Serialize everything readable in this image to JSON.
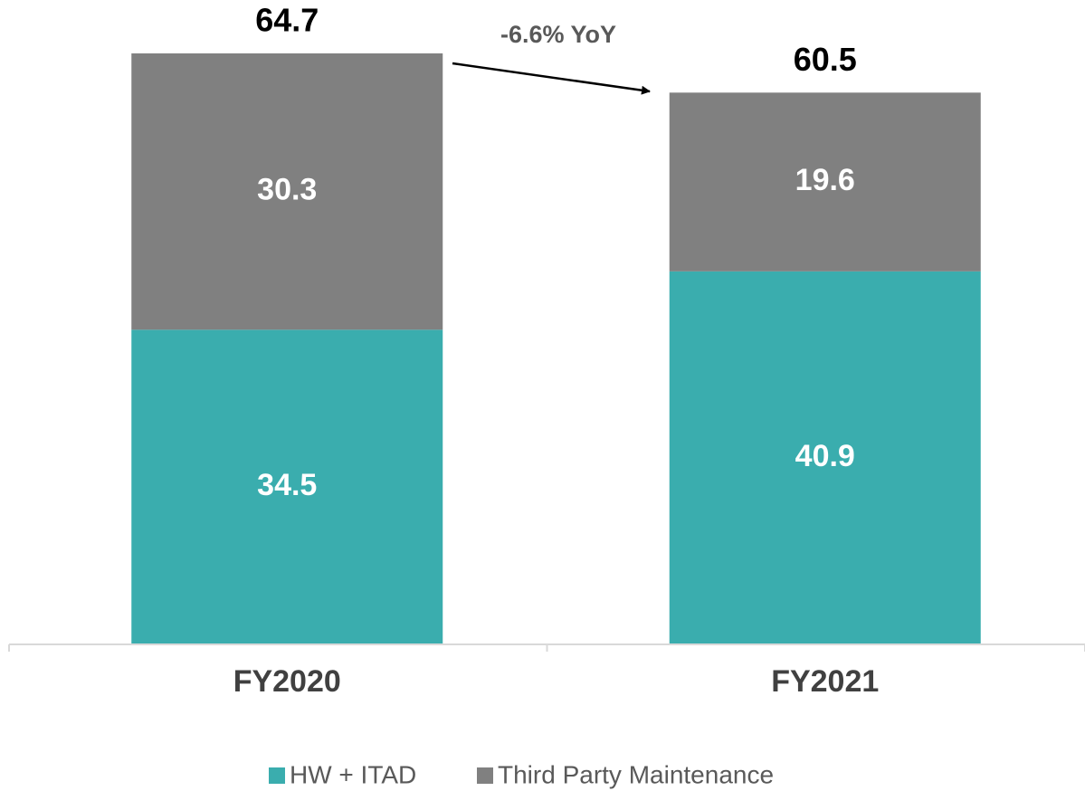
{
  "chart_data": {
    "type": "stacked_bar",
    "categories": [
      "FY2020",
      "FY2021"
    ],
    "series": [
      {
        "name": "HW + ITAD",
        "color": "#3aadae",
        "values": [
          34.5,
          40.9
        ]
      },
      {
        "name": "Third Party Maintenance",
        "color": "#808080",
        "values": [
          30.3,
          19.6
        ]
      }
    ],
    "totals": [
      64.7,
      60.5
    ],
    "annotation": "-6.6% YoY"
  }
}
